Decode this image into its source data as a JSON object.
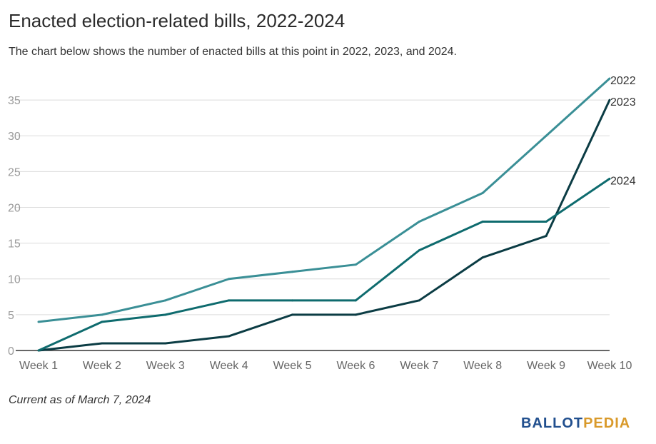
{
  "title": "Enacted election-related bills, 2022-2024",
  "subtitle": "The chart below shows the number of enacted bills at this point in 2022, 2023, and 2024.",
  "footnote": "Current as of March 7, 2024",
  "logo": {
    "part1": "BALLOT",
    "part2": "PEDIA"
  },
  "colors": {
    "s2022": "#3a8f96",
    "s2023": "#0b3c44",
    "s2024": "#0e6b6e",
    "grid": "#dcdcdc",
    "axis": "#333333"
  },
  "chart_data": {
    "type": "line",
    "categories": [
      "Week 1",
      "Week 2",
      "Week 3",
      "Week 4",
      "Week 5",
      "Week 6",
      "Week 7",
      "Week 8",
      "Week 9",
      "Week 10"
    ],
    "yticks": [
      0,
      5,
      10,
      15,
      20,
      25,
      30,
      35
    ],
    "ylim": [
      0,
      38
    ],
    "grid": true,
    "legend": "end-labels",
    "series": [
      {
        "name": "2022",
        "values": [
          4,
          5,
          7,
          10,
          11,
          12,
          18,
          22,
          30,
          38
        ]
      },
      {
        "name": "2023",
        "values": [
          0,
          1,
          1,
          2,
          5,
          5,
          7,
          13,
          16,
          35
        ]
      },
      {
        "name": "2024",
        "values": [
          0,
          4,
          5,
          7,
          7,
          7,
          14,
          18,
          18,
          24
        ]
      }
    ]
  }
}
